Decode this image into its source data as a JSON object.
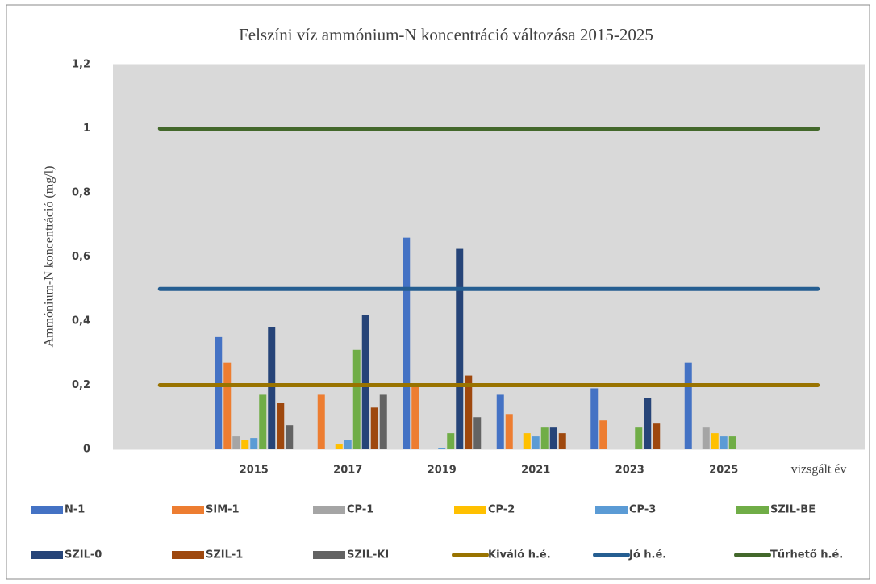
{
  "chart_data": {
    "type": "bar",
    "title": "Felszíni víz ammónium-N koncentráció változása 2015-2025",
    "y_label": "Ammónium-N koncentráció (mg/l)",
    "x_label": "vizsgált év",
    "categories": [
      null,
      "2015",
      "2017",
      "2019",
      "2021",
      "2023",
      "2025",
      null
    ],
    "ylim": [
      0,
      1.2
    ],
    "yticks": [
      0,
      {
        "value": 0.2,
        "label": "0,2"
      },
      {
        "value": 0.4,
        "label": "0,4"
      },
      {
        "value": 0.6,
        "label": "0,6"
      },
      {
        "value": 0.8,
        "label": "0,8"
      },
      1,
      {
        "value": 1.2,
        "label": "1,2"
      }
    ],
    "grid": true,
    "legend": "bottom",
    "series": [
      {
        "name": "N-1",
        "color": "#4472c4",
        "values": [
          null,
          0.35,
          null,
          0.66,
          0.17,
          0.19,
          0.27,
          null
        ]
      },
      {
        "name": "SIM-1",
        "color": "#ed7d31",
        "values": [
          null,
          0.27,
          0.17,
          0.2,
          0.11,
          0.09,
          null,
          null
        ]
      },
      {
        "name": "CP-1",
        "color": "#a5a5a5",
        "values": [
          null,
          0.04,
          null,
          null,
          null,
          null,
          0.07,
          null
        ]
      },
      {
        "name": "CP-2",
        "color": "#ffc000",
        "values": [
          null,
          0.03,
          0.015,
          null,
          0.05,
          null,
          0.05,
          null
        ]
      },
      {
        "name": "CP-3",
        "color": "#5b9bd5",
        "values": [
          null,
          0.035,
          0.03,
          0.005,
          0.04,
          null,
          0.04,
          null
        ]
      },
      {
        "name": "SZIL-BE",
        "color": "#70ad47",
        "values": [
          null,
          0.17,
          0.31,
          0.05,
          0.07,
          0.07,
          0.04,
          null
        ]
      },
      {
        "name": "SZIL-0",
        "color": "#264478",
        "values": [
          null,
          0.38,
          0.42,
          0.625,
          0.07,
          0.16,
          null,
          null
        ]
      },
      {
        "name": "SZIL-1",
        "color": "#9e480e",
        "values": [
          null,
          0.145,
          0.13,
          0.23,
          0.05,
          0.08,
          null,
          null
        ]
      },
      {
        "name": "SZIL-KI",
        "color": "#636363",
        "values": [
          null,
          0.075,
          0.17,
          0.1,
          null,
          null,
          null,
          null
        ]
      },
      {
        "name": "Kiváló h.é.",
        "color": "#997300",
        "type": "line",
        "values": [
          0.2,
          0.2,
          0.2,
          0.2,
          0.2,
          0.2,
          0.2,
          0.2
        ]
      },
      {
        "name": "Jó h.é.",
        "color": "#255e91",
        "type": "line",
        "values": [
          0.5,
          0.5,
          0.5,
          0.5,
          0.5,
          0.5,
          0.5,
          0.5
        ]
      },
      {
        "name": "Tűrhető h.é.",
        "color": "#43682b",
        "type": "line",
        "values": [
          1,
          1,
          1,
          1,
          1,
          1,
          1,
          1
        ]
      }
    ]
  }
}
